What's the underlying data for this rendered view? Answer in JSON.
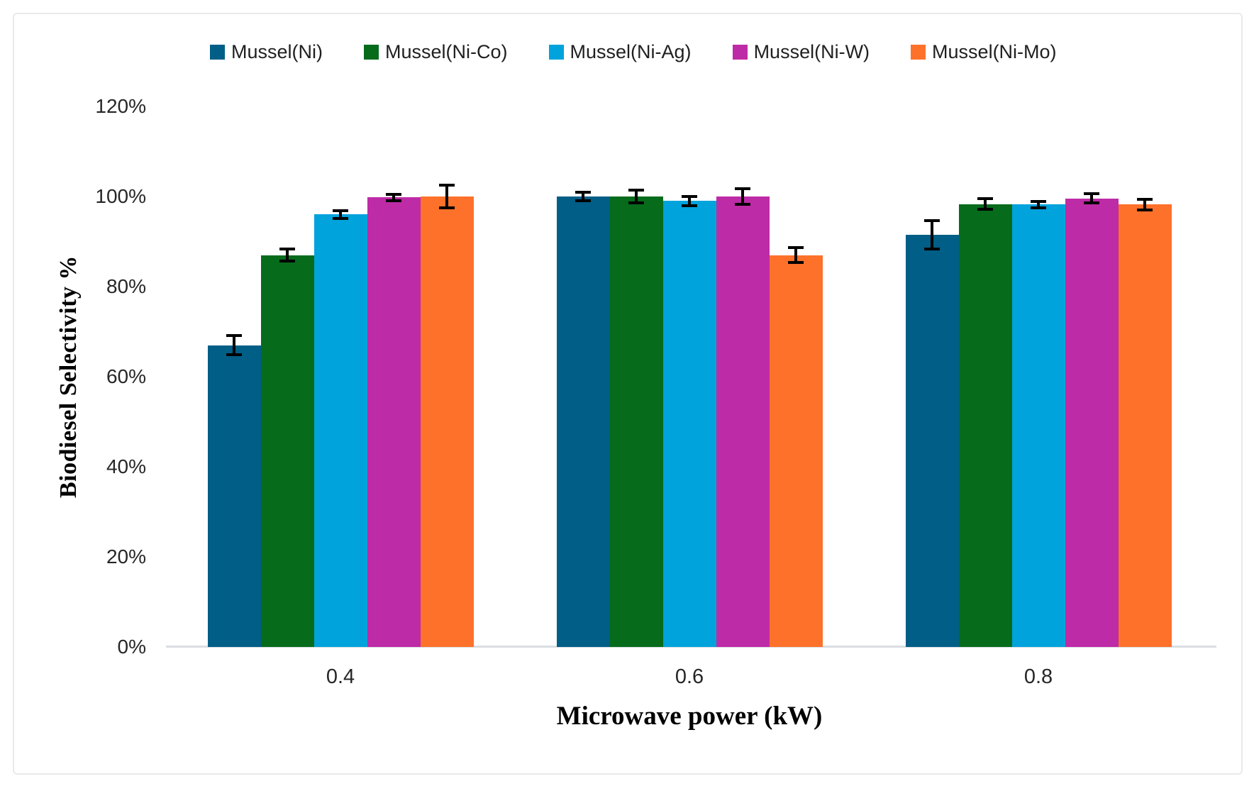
{
  "figure": {
    "background_color": "#ffffff",
    "frame_border_color": "#e9e9e9",
    "axis_line_color": "#dadee2",
    "tick_text_color": "#262626",
    "error_bar_color": "#000000"
  },
  "chart_data": {
    "type": "bar",
    "title": "",
    "xlabel": "Microwave power (kW)",
    "ylabel": "Biodiesel Selectivity %",
    "categories": [
      "0.4",
      "0.6",
      "0.8"
    ],
    "series": [
      {
        "name": "Mussel(Ni)",
        "color": "#005E87",
        "values": [
          67,
          100,
          91.5
        ],
        "errors": [
          2.5,
          1.3,
          3.5
        ]
      },
      {
        "name": "Mussel(Ni-Co)",
        "color": "#076B1C",
        "values": [
          87,
          100,
          98.3
        ],
        "errors": [
          1.6,
          1.7,
          1.5
        ]
      },
      {
        "name": "Mussel(Ni-Ag)",
        "color": "#00A3DB",
        "values": [
          96,
          99,
          98.2
        ],
        "errors": [
          1.2,
          1.3,
          1.0
        ]
      },
      {
        "name": "Mussel(Ni-W)",
        "color": "#BE2BA6",
        "values": [
          99.8,
          100,
          99.6
        ],
        "errors": [
          1.0,
          2.0,
          1.4
        ]
      },
      {
        "name": "Mussel(Ni-Mo)",
        "color": "#FD712A",
        "values": [
          100,
          87,
          98.2
        ],
        "errors": [
          2.8,
          2.0,
          1.5
        ]
      }
    ],
    "ylim": [
      0,
      120
    ],
    "ytick_interval": 20,
    "ytick_labels": [
      "0%",
      "20%",
      "40%",
      "60%",
      "80%",
      "100%",
      "120%"
    ],
    "grid": "off",
    "legend_position": "top",
    "error_bars": true
  }
}
